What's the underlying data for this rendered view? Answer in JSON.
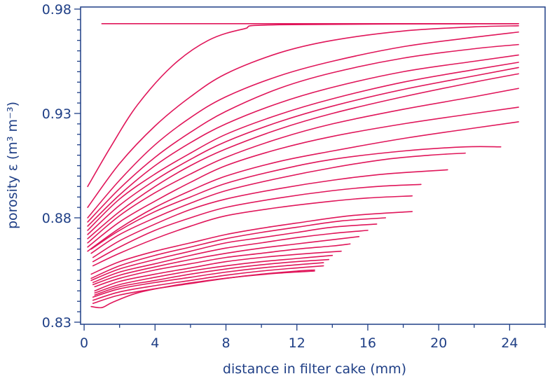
{
  "chart_data": {
    "type": "line",
    "title": "",
    "xlabel": "distance in filter cake (mm)",
    "ylabel": "porosity ε (m³ m⁻³)",
    "xlim": [
      -0.2,
      26
    ],
    "ylim": [
      0.829,
      0.981
    ],
    "x_ticks": [
      0,
      4,
      8,
      12,
      16,
      20,
      24
    ],
    "x_tick_labels": [
      "0",
      "4",
      "8",
      "12",
      "16",
      "20",
      "24"
    ],
    "x_minor_ticks": [
      2,
      6,
      10,
      14,
      18,
      22,
      26
    ],
    "y_ticks": [
      0.83,
      0.88,
      0.93,
      0.98
    ],
    "y_tick_labels": [
      "0.83",
      "0.88",
      "0.93",
      "0.98"
    ],
    "y_minor_step": 0.005,
    "grid": false,
    "line_color": "#e0165a",
    "axis_color": "#1f3f86",
    "curve_shape": "saturating",
    "series": [
      {
        "values": [
          [
            1.0,
            0.973
          ],
          [
            24.5,
            0.973
          ]
        ]
      },
      {
        "values": [
          [
            0.2,
            0.895
          ],
          [
            1.5,
            0.914
          ],
          [
            3.0,
            0.934
          ],
          [
            5.0,
            0.953
          ],
          [
            7.0,
            0.965
          ],
          [
            9.0,
            0.9705
          ],
          [
            11.0,
            0.9725
          ],
          [
            24.5,
            0.973
          ]
        ]
      },
      {
        "values": [
          [
            0.2,
            0.885
          ],
          [
            2.0,
            0.906
          ],
          [
            4.0,
            0.924
          ],
          [
            6.0,
            0.938
          ],
          [
            8.0,
            0.949
          ],
          [
            11.0,
            0.959
          ],
          [
            14.0,
            0.965
          ],
          [
            18.0,
            0.9695
          ],
          [
            22.0,
            0.9715
          ],
          [
            24.5,
            0.972
          ]
        ]
      },
      {
        "values": [
          [
            0.2,
            0.88
          ],
          [
            2.0,
            0.898
          ],
          [
            4.0,
            0.915
          ],
          [
            6.0,
            0.928
          ],
          [
            8.0,
            0.938
          ],
          [
            11.0,
            0.948
          ],
          [
            14.0,
            0.955
          ],
          [
            18.0,
            0.962
          ],
          [
            22.0,
            0.9665
          ],
          [
            24.5,
            0.969
          ]
        ]
      },
      {
        "values": [
          [
            0.2,
            0.878
          ],
          [
            2.0,
            0.894
          ],
          [
            4.0,
            0.909
          ],
          [
            6.0,
            0.921
          ],
          [
            8.0,
            0.931
          ],
          [
            11.0,
            0.942
          ],
          [
            14.0,
            0.9495
          ],
          [
            18.0,
            0.9565
          ],
          [
            22.0,
            0.961
          ],
          [
            24.5,
            0.963
          ]
        ]
      },
      {
        "values": [
          [
            0.2,
            0.876
          ],
          [
            2.0,
            0.891
          ],
          [
            4.0,
            0.905
          ],
          [
            6.0,
            0.916
          ],
          [
            8.0,
            0.925
          ],
          [
            11.0,
            0.935
          ],
          [
            14.0,
            0.9425
          ],
          [
            18.0,
            0.95
          ],
          [
            22.0,
            0.955
          ],
          [
            24.5,
            0.958
          ]
        ]
      },
      {
        "values": [
          [
            0.2,
            0.874
          ],
          [
            2.0,
            0.889
          ],
          [
            4.0,
            0.901
          ],
          [
            6.0,
            0.911
          ],
          [
            8.0,
            0.92
          ],
          [
            11.0,
            0.9295
          ],
          [
            14.0,
            0.937
          ],
          [
            18.0,
            0.945
          ],
          [
            22.0,
            0.951
          ],
          [
            24.5,
            0.9545
          ]
        ]
      },
      {
        "values": [
          [
            0.2,
            0.872
          ],
          [
            2.0,
            0.886
          ],
          [
            4.0,
            0.898
          ],
          [
            6.0,
            0.908
          ],
          [
            8.0,
            0.9165
          ],
          [
            11.0,
            0.926
          ],
          [
            14.0,
            0.9335
          ],
          [
            18.0,
            0.9415
          ],
          [
            22.0,
            0.948
          ],
          [
            24.5,
            0.952
          ]
        ]
      },
      {
        "values": [
          [
            0.2,
            0.87
          ],
          [
            2.0,
            0.883
          ],
          [
            4.0,
            0.895
          ],
          [
            6.0,
            0.905
          ],
          [
            8.0,
            0.913
          ],
          [
            11.0,
            0.9225
          ],
          [
            14.0,
            0.93
          ],
          [
            18.0,
            0.938
          ],
          [
            22.0,
            0.945
          ],
          [
            24.5,
            0.949
          ]
        ]
      },
      {
        "values": [
          [
            0.2,
            0.868
          ],
          [
            2.0,
            0.881
          ],
          [
            4.0,
            0.892
          ],
          [
            6.0,
            0.901
          ],
          [
            8.0,
            0.909
          ],
          [
            11.0,
            0.918
          ],
          [
            14.0,
            0.925
          ],
          [
            18.0,
            0.932
          ],
          [
            22.0,
            0.938
          ],
          [
            24.5,
            0.942
          ]
        ]
      },
      {
        "values": [
          [
            0.2,
            0.866
          ],
          [
            2.0,
            0.878
          ],
          [
            4.0,
            0.888
          ],
          [
            6.0,
            0.897
          ],
          [
            8.0,
            0.905
          ],
          [
            11.0,
            0.913
          ],
          [
            14.0,
            0.919
          ],
          [
            18.0,
            0.925
          ],
          [
            22.0,
            0.93
          ],
          [
            24.5,
            0.933
          ]
        ]
      },
      {
        "values": [
          [
            0.2,
            0.864
          ],
          [
            2.0,
            0.875
          ],
          [
            4.0,
            0.885
          ],
          [
            6.0,
            0.893
          ],
          [
            8.0,
            0.9
          ],
          [
            11.0,
            0.907
          ],
          [
            14.0,
            0.912
          ],
          [
            18.0,
            0.918
          ],
          [
            22.0,
            0.923
          ],
          [
            24.5,
            0.926
          ]
        ]
      },
      {
        "values": [
          [
            0.4,
            0.865
          ],
          [
            2.0,
            0.874
          ],
          [
            4.0,
            0.883
          ],
          [
            6.0,
            0.89
          ],
          [
            8.0,
            0.8965
          ],
          [
            11.0,
            0.903
          ],
          [
            14.0,
            0.908
          ],
          [
            18.0,
            0.912
          ],
          [
            21.5,
            0.914
          ],
          [
            23.5,
            0.914
          ]
        ]
      },
      {
        "values": [
          [
            0.4,
            0.863
          ],
          [
            2.0,
            0.872
          ],
          [
            4.0,
            0.88
          ],
          [
            6.0,
            0.887
          ],
          [
            8.0,
            0.893
          ],
          [
            11.0,
            0.899
          ],
          [
            14.0,
            0.904
          ],
          [
            17.0,
            0.908
          ],
          [
            19.5,
            0.91
          ],
          [
            21.5,
            0.911
          ]
        ]
      },
      {
        "values": [
          [
            0.5,
            0.861
          ],
          [
            2.0,
            0.869
          ],
          [
            4.0,
            0.877
          ],
          [
            6.0,
            0.884
          ],
          [
            8.0,
            0.889
          ],
          [
            11.0,
            0.894
          ],
          [
            14.0,
            0.898
          ],
          [
            17.0,
            0.901
          ],
          [
            20.5,
            0.903
          ]
        ]
      },
      {
        "values": [
          [
            0.5,
            0.859
          ],
          [
            2.0,
            0.866
          ],
          [
            4.0,
            0.874
          ],
          [
            6.0,
            0.88
          ],
          [
            8.0,
            0.885
          ],
          [
            11.0,
            0.8895
          ],
          [
            14.0,
            0.893
          ],
          [
            16.5,
            0.895
          ],
          [
            19.0,
            0.896
          ]
        ]
      },
      {
        "values": [
          [
            0.5,
            0.857
          ],
          [
            2.0,
            0.863
          ],
          [
            4.0,
            0.87
          ],
          [
            6.0,
            0.876
          ],
          [
            8.0,
            0.881
          ],
          [
            11.0,
            0.885
          ],
          [
            14.0,
            0.888
          ],
          [
            16.0,
            0.8895
          ],
          [
            18.5,
            0.8905
          ]
        ]
      },
      {
        "values": [
          [
            0.4,
            0.853
          ],
          [
            2.0,
            0.859
          ],
          [
            4.0,
            0.864
          ],
          [
            6.0,
            0.868
          ],
          [
            8.0,
            0.872
          ],
          [
            10.0,
            0.875
          ],
          [
            12.0,
            0.8775
          ],
          [
            15.0,
            0.881
          ],
          [
            18.5,
            0.883
          ]
        ]
      },
      {
        "values": [
          [
            0.4,
            0.851
          ],
          [
            2.0,
            0.857
          ],
          [
            4.0,
            0.862
          ],
          [
            6.0,
            0.866
          ],
          [
            8.0,
            0.87
          ],
          [
            10.0,
            0.873
          ],
          [
            12.0,
            0.8755
          ],
          [
            14.5,
            0.8785
          ],
          [
            17.0,
            0.88
          ]
        ]
      },
      {
        "values": [
          [
            0.4,
            0.85
          ],
          [
            2.0,
            0.8555
          ],
          [
            4.0,
            0.86
          ],
          [
            6.0,
            0.864
          ],
          [
            8.0,
            0.868
          ],
          [
            10.0,
            0.8705
          ],
          [
            12.0,
            0.873
          ],
          [
            14.0,
            0.8755
          ],
          [
            16.5,
            0.877
          ]
        ]
      },
      {
        "values": [
          [
            0.5,
            0.849
          ],
          [
            2.0,
            0.854
          ],
          [
            4.0,
            0.858
          ],
          [
            6.0,
            0.862
          ],
          [
            8.0,
            0.8655
          ],
          [
            10.0,
            0.868
          ],
          [
            12.0,
            0.8705
          ],
          [
            14.0,
            0.8725
          ],
          [
            16.0,
            0.874
          ]
        ]
      },
      {
        "values": [
          [
            0.5,
            0.848
          ],
          [
            2.0,
            0.8525
          ],
          [
            4.0,
            0.8565
          ],
          [
            6.0,
            0.86
          ],
          [
            8.0,
            0.863
          ],
          [
            10.0,
            0.8655
          ],
          [
            12.0,
            0.8675
          ],
          [
            14.0,
            0.8695
          ],
          [
            15.5,
            0.871
          ]
        ]
      },
      {
        "values": [
          [
            0.6,
            0.847
          ],
          [
            2.0,
            0.851
          ],
          [
            4.0,
            0.855
          ],
          [
            6.0,
            0.858
          ],
          [
            8.0,
            0.861
          ],
          [
            10.0,
            0.863
          ],
          [
            12.0,
            0.865
          ],
          [
            14.0,
            0.8665
          ],
          [
            15.0,
            0.8675
          ]
        ]
      },
      {
        "values": [
          [
            0.6,
            0.845
          ],
          [
            2.0,
            0.8495
          ],
          [
            4.0,
            0.853
          ],
          [
            6.0,
            0.856
          ],
          [
            8.0,
            0.859
          ],
          [
            10.0,
            0.861
          ],
          [
            12.0,
            0.8625
          ],
          [
            14.5,
            0.864
          ]
        ]
      },
      {
        "values": [
          [
            0.6,
            0.844
          ],
          [
            2.0,
            0.848
          ],
          [
            4.0,
            0.8515
          ],
          [
            6.0,
            0.8545
          ],
          [
            8.0,
            0.857
          ],
          [
            10.0,
            0.859
          ],
          [
            12.0,
            0.8605
          ],
          [
            14.0,
            0.862
          ]
        ]
      },
      {
        "values": [
          [
            0.6,
            0.843
          ],
          [
            2.0,
            0.847
          ],
          [
            4.0,
            0.85
          ],
          [
            6.0,
            0.853
          ],
          [
            8.0,
            0.8555
          ],
          [
            10.0,
            0.8575
          ],
          [
            12.0,
            0.859
          ],
          [
            13.8,
            0.86
          ]
        ]
      },
      {
        "values": [
          [
            0.5,
            0.842
          ],
          [
            2.0,
            0.846
          ],
          [
            4.0,
            0.849
          ],
          [
            6.0,
            0.8515
          ],
          [
            8.0,
            0.854
          ],
          [
            10.0,
            0.856
          ],
          [
            12.0,
            0.8575
          ],
          [
            13.5,
            0.8585
          ]
        ]
      },
      {
        "values": [
          [
            0.5,
            0.8405
          ],
          [
            2.0,
            0.8445
          ],
          [
            4.0,
            0.8475
          ],
          [
            6.0,
            0.85
          ],
          [
            8.0,
            0.8525
          ],
          [
            10.0,
            0.8545
          ],
          [
            12.0,
            0.856
          ],
          [
            13.5,
            0.857
          ]
        ]
      },
      {
        "values": [
          [
            0.5,
            0.839
          ],
          [
            2.0,
            0.843
          ],
          [
            4.0,
            0.846
          ],
          [
            6.0,
            0.8485
          ],
          [
            8.0,
            0.851
          ],
          [
            10.0,
            0.853
          ],
          [
            12.0,
            0.8545
          ],
          [
            13.0,
            0.855
          ]
        ]
      },
      {
        "values": [
          [
            0.4,
            0.8375
          ],
          [
            1.0,
            0.837
          ],
          [
            1.6,
            0.8395
          ],
          [
            3.0,
            0.844
          ],
          [
            5.0,
            0.8475
          ],
          [
            7.0,
            0.85
          ],
          [
            9.0,
            0.852
          ],
          [
            11.0,
            0.8535
          ],
          [
            13.0,
            0.8545
          ]
        ]
      }
    ]
  }
}
